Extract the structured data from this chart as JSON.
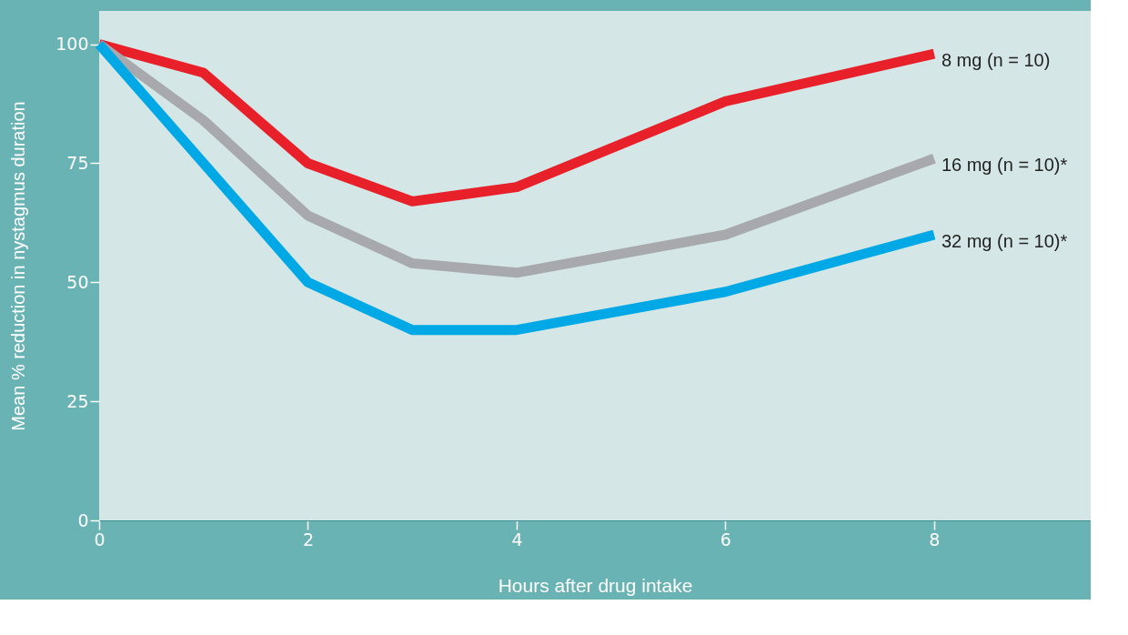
{
  "chart_data": {
    "type": "line",
    "xlabel": "Hours after drug intake",
    "ylabel": "Mean % reduction in nystagmus duration",
    "xlim": [
      0,
      9.5
    ],
    "ylim": [
      0,
      107
    ],
    "xticks": [
      0,
      2,
      4,
      6,
      8
    ],
    "yticks": [
      0,
      25,
      50,
      75,
      100
    ],
    "grid": false,
    "legend": false,
    "line_style": "solid",
    "marker": "none",
    "series": [
      {
        "name": "8 mg (n = 10)",
        "color": "#e8202a",
        "x": [
          0,
          1,
          2,
          3,
          4,
          6,
          8
        ],
        "values": [
          100,
          94,
          75,
          67,
          70,
          88,
          98
        ]
      },
      {
        "name": "16 mg (n = 10)*",
        "color": "#a7a9ac",
        "x": [
          0,
          1,
          2,
          3,
          4,
          6,
          8
        ],
        "values": [
          100,
          84,
          64,
          54,
          52,
          60,
          76
        ]
      },
      {
        "name": "32 mg (n = 10)*",
        "color": "#00a9e6",
        "x": [
          0,
          2,
          3,
          4,
          6,
          8
        ],
        "values": [
          100,
          50,
          40,
          40,
          48,
          60
        ]
      }
    ]
  }
}
